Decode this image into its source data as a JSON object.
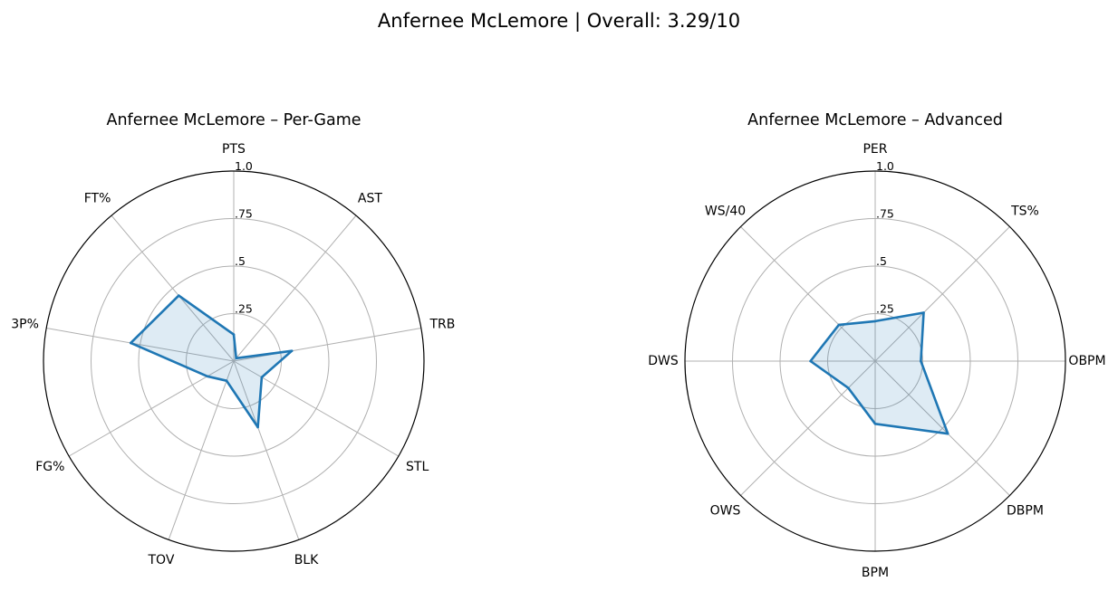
{
  "figure": {
    "suptitle": "Anfernee McLemore | Overall: 3.29/10"
  },
  "colors": {
    "line": "#1f77b4",
    "fill": "#1f77b4",
    "grid": "#b0b0b0",
    "frame": "#000000",
    "background": "#ffffff"
  },
  "chart_data": [
    {
      "type": "radar",
      "title": "Anfernee McLemore – Per-Game",
      "rlim": [
        0,
        1
      ],
      "rticks": [
        {
          "value": 0.25,
          "label": ".25"
        },
        {
          "value": 0.5,
          "label": ".5"
        },
        {
          "value": 0.75,
          "label": ".75"
        },
        {
          "value": 1.0,
          "label": "1.0"
        }
      ],
      "grid": true,
      "categories": [
        "PTS",
        "AST",
        "TRB",
        "STL",
        "BLK",
        "TOV",
        "FG%",
        "3P%",
        "FT%"
      ],
      "values": [
        0.14,
        0.02,
        0.31,
        0.17,
        0.37,
        0.11,
        0.16,
        0.55,
        0.45
      ]
    },
    {
      "type": "radar",
      "title": "Anfernee McLemore – Advanced",
      "rlim": [
        0,
        1
      ],
      "rticks": [
        {
          "value": 0.25,
          "label": ".25"
        },
        {
          "value": 0.5,
          "label": ".5"
        },
        {
          "value": 0.75,
          "label": ".75"
        },
        {
          "value": 1.0,
          "label": "1.0"
        }
      ],
      "grid": true,
      "categories": [
        "PER",
        "TS%",
        "OBPM",
        "DBPM",
        "BPM",
        "OWS",
        "DWS",
        "WS/40"
      ],
      "values": [
        0.21,
        0.36,
        0.24,
        0.54,
        0.33,
        0.2,
        0.34,
        0.27
      ]
    }
  ]
}
